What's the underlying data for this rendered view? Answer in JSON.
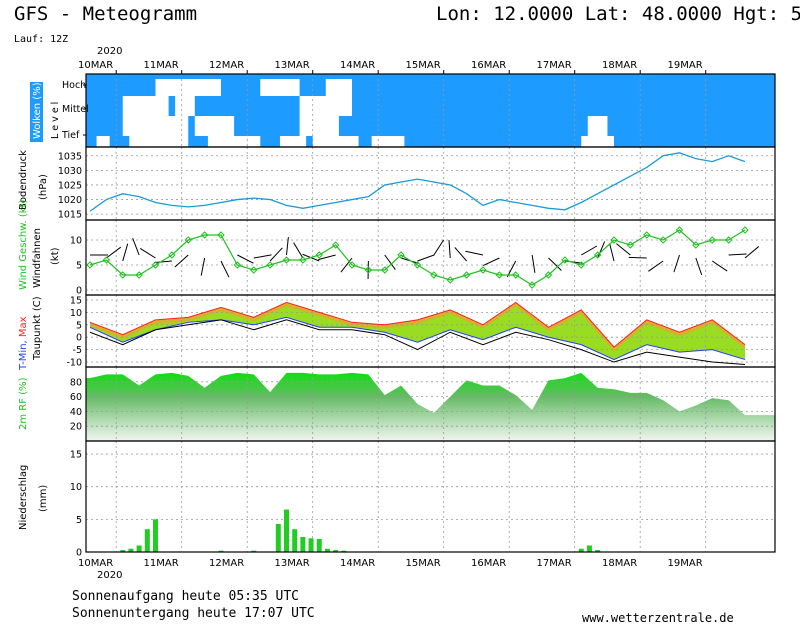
{
  "header": {
    "title": "GFS - Meteogramm",
    "location": "Lon: 12.0000  Lat: 48.0000  Hgt: 5",
    "run": "Lauf: 12Z"
  },
  "time_axis": {
    "year": "2020",
    "days": [
      "10MAR",
      "11MAR",
      "12MAR",
      "13MAR",
      "14MAR",
      "15MAR",
      "16MAR",
      "17MAR",
      "18MAR",
      "19MAR"
    ]
  },
  "footer": {
    "sunrise": "Sonnenaufgang heute 05:35 UTC",
    "sunset": "Sonnenuntergang heute 17:07 UTC",
    "site": "www.wetterzentrale.de"
  },
  "colors": {
    "cloud_blue": "#1e9bff",
    "pressure_line": "#1a9bd8",
    "wind_green": "#20c020",
    "rh_green": "#22bb22",
    "precip_green": "#22cc22",
    "tmin_blue": "#2040ff",
    "tmax_red": "#ff2020"
  },
  "chart_data": [
    {
      "type": "heatmap",
      "name": "clouds",
      "ylabel": "Wolken (%)",
      "levels_label": "L e v e l",
      "levels": [
        "Hoch",
        "Mittel",
        "Tief"
      ]
    },
    {
      "type": "line",
      "ylabel": "Bodendruck (hPa)",
      "yticks": [
        1015,
        1020,
        1025,
        1030,
        1035
      ],
      "ylim": [
        1013,
        1038
      ],
      "x": [
        0,
        0.25,
        0.5,
        0.75,
        1,
        1.25,
        1.5,
        1.75,
        2,
        2.25,
        2.5,
        2.75,
        3,
        3.25,
        3.5,
        3.75,
        4,
        4.25,
        4.5,
        4.75,
        5,
        5.25,
        5.5,
        5.75,
        6,
        6.25,
        6.5,
        6.75,
        7,
        7.25,
        7.5,
        7.75,
        8,
        8.25,
        8.5,
        8.75,
        9,
        9.25,
        9.5,
        9.75,
        10
      ],
      "values": [
        1016,
        1020,
        1022,
        1021,
        1019,
        1018,
        1017.5,
        1018,
        1019,
        1020,
        1020.5,
        1020,
        1018,
        1017,
        1018,
        1019,
        1020,
        1021,
        1025,
        1026,
        1027,
        1026,
        1025,
        1022,
        1018,
        1020,
        1019,
        1018,
        1017,
        1016.5,
        1019,
        1022,
        1025,
        1028,
        1031,
        1035,
        1036,
        1034,
        1033,
        1035,
        1033
      ],
      "x_unit": "days since 10MAR 00Z"
    },
    {
      "type": "line",
      "name": "wind",
      "ylabel": "Wind Geschw. (kt)",
      "ylabel2": "Windfahnen",
      "yticks": [
        0,
        5,
        10
      ],
      "ylim": [
        -1,
        14
      ],
      "x": [
        0,
        0.25,
        0.5,
        0.75,
        1,
        1.25,
        1.5,
        1.75,
        2,
        2.25,
        2.5,
        2.75,
        3,
        3.25,
        3.5,
        3.75,
        4,
        4.25,
        4.5,
        4.75,
        5,
        5.25,
        5.5,
        5.75,
        6,
        6.25,
        6.5,
        6.75,
        7,
        7.25,
        7.5,
        7.75,
        8,
        8.25,
        8.5,
        8.75,
        9,
        9.25,
        9.5,
        9.75,
        10
      ],
      "values": [
        5,
        6,
        3,
        3,
        5,
        7,
        10,
        11,
        11,
        5,
        4,
        5,
        6,
        6,
        7,
        9,
        5,
        4,
        4,
        7,
        5,
        3,
        2,
        3,
        4,
        3,
        3,
        1,
        3,
        6,
        5,
        7,
        10,
        9,
        11,
        10,
        12,
        9,
        10,
        10,
        12
      ],
      "x_unit": "days since 10MAR 00Z"
    },
    {
      "type": "area",
      "name": "temperature",
      "ylabel": "T-Min, Max",
      "ylabel2": "Taupunkt (C)",
      "yticks": [
        -10,
        -5,
        0,
        5,
        10,
        15
      ],
      "ylim": [
        -12,
        17
      ],
      "x": [
        0,
        0.5,
        1,
        1.5,
        2,
        2.5,
        3,
        3.5,
        4,
        4.5,
        5,
        5.5,
        6,
        6.5,
        7,
        7.5,
        8,
        8.5,
        9,
        9.5,
        10
      ],
      "tmax": [
        6,
        1,
        7,
        8,
        12,
        8,
        14,
        10,
        6,
        5,
        7,
        11,
        5,
        14,
        4,
        11,
        -4,
        7,
        2,
        7,
        -3
      ],
      "tmin": [
        4,
        -2,
        3,
        6,
        7,
        5,
        8,
        4,
        4,
        2,
        -2,
        3,
        -1,
        4,
        0,
        -3,
        -9,
        -3,
        -6,
        -5,
        -9
      ],
      "dewpoint": [
        2,
        -3,
        3,
        5,
        7,
        3,
        7,
        3,
        3,
        1,
        -5,
        2,
        -3,
        2,
        -1,
        -5,
        -10,
        -6,
        -8,
        -10,
        -11
      ],
      "x_unit": "days since 10MAR 00Z"
    },
    {
      "type": "area",
      "name": "relative_humidity",
      "ylabel": "2m RF (%)",
      "yticks": [
        20,
        40,
        60,
        80
      ],
      "ylim": [
        0,
        100
      ],
      "x": [
        0,
        0.25,
        0.5,
        0.75,
        1,
        1.25,
        1.5,
        1.75,
        2,
        2.25,
        2.5,
        2.75,
        3,
        3.25,
        3.5,
        3.75,
        4,
        4.25,
        4.5,
        4.75,
        5,
        5.25,
        5.5,
        5.75,
        6,
        6.25,
        6.5,
        6.75,
        7,
        7.25,
        7.5,
        7.75,
        8,
        8.25,
        8.5,
        8.75,
        9,
        9.25,
        9.5,
        9.75,
        10
      ],
      "values": [
        85,
        90,
        90,
        75,
        90,
        92,
        88,
        72,
        88,
        92,
        90,
        66,
        92,
        92,
        90,
        90,
        92,
        90,
        62,
        75,
        50,
        38,
        60,
        82,
        75,
        75,
        62,
        42,
        82,
        85,
        92,
        72,
        70,
        65,
        65,
        55,
        40,
        48,
        58,
        55,
        35
      ],
      "x_unit": "days since 10MAR 00Z"
    },
    {
      "type": "bar",
      "name": "precipitation",
      "ylabel": "Niederschlag (mm)",
      "yticks": [
        0,
        5,
        10,
        15
      ],
      "ylim": [
        0,
        17
      ],
      "x": [
        0.5,
        0.625,
        0.75,
        0.875,
        1.0,
        2.0,
        2.5,
        2.875,
        3.0,
        3.125,
        3.25,
        3.375,
        3.5,
        3.625,
        3.75,
        3.875,
        7.5,
        7.625,
        7.75
      ],
      "values": [
        0.3,
        0.5,
        1.0,
        3.5,
        5.0,
        0.2,
        0.2,
        4.3,
        6.5,
        3.5,
        2.3,
        2.1,
        2.0,
        0.5,
        0.3,
        0.2,
        0.5,
        1.0,
        0.3
      ],
      "x_unit": "days since 10MAR 00Z"
    }
  ]
}
